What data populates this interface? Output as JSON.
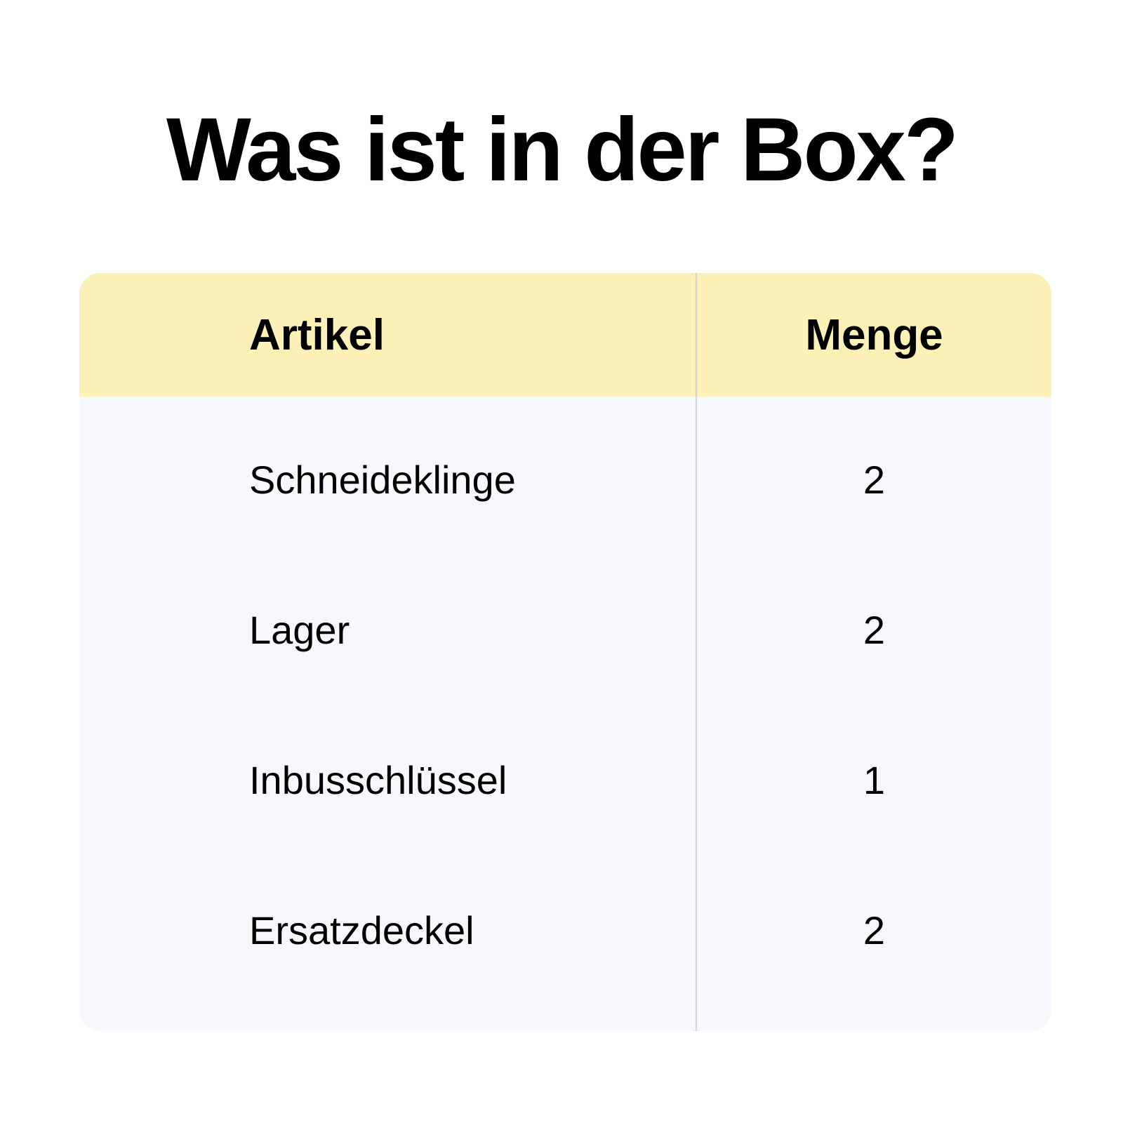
{
  "title": "Was ist in der Box?",
  "table": {
    "header": [
      "Artikel",
      "Menge"
    ],
    "rows": [
      [
        "Schneideklinge",
        2
      ],
      [
        "Lager",
        2
      ],
      [
        "Inbusschlüssel",
        1
      ],
      [
        "Ersatzdeckel",
        2
      ]
    ]
  }
}
